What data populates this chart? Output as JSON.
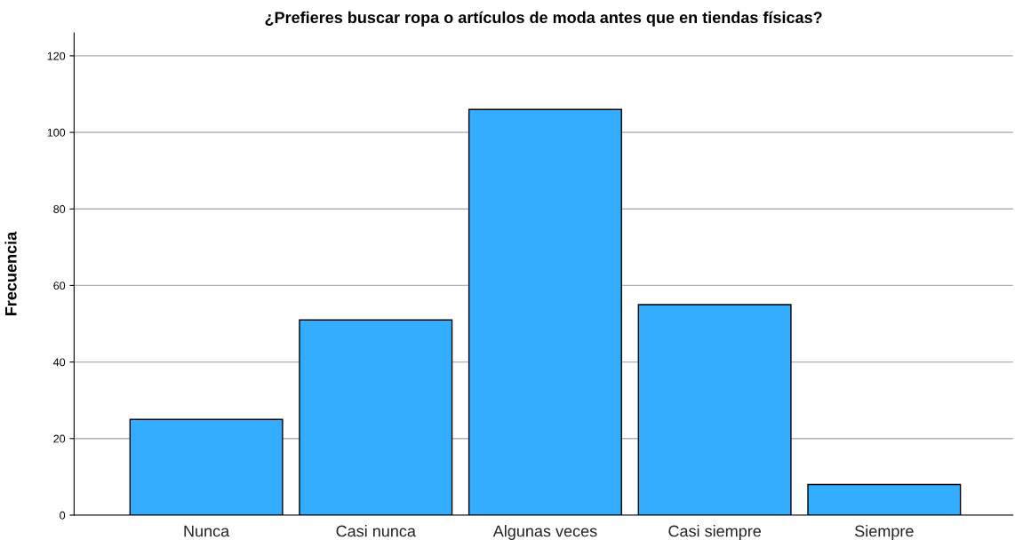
{
  "chart_data": {
    "type": "bar",
    "title": "¿Prefieres buscar ropa o artículos de moda antes que en tiendas físicas?",
    "ylabel": "Frecuencia",
    "categories": [
      "Nunca",
      "Casi nunca",
      "Algunas veces",
      "Casi siempre",
      "Siempre"
    ],
    "values": [
      25,
      51,
      106,
      55,
      8
    ],
    "color": "#33adff",
    "ylim": [
      0,
      126
    ],
    "yticks": [
      0,
      20,
      40,
      60,
      80,
      100,
      120
    ],
    "grid": "y",
    "legend": false
  }
}
